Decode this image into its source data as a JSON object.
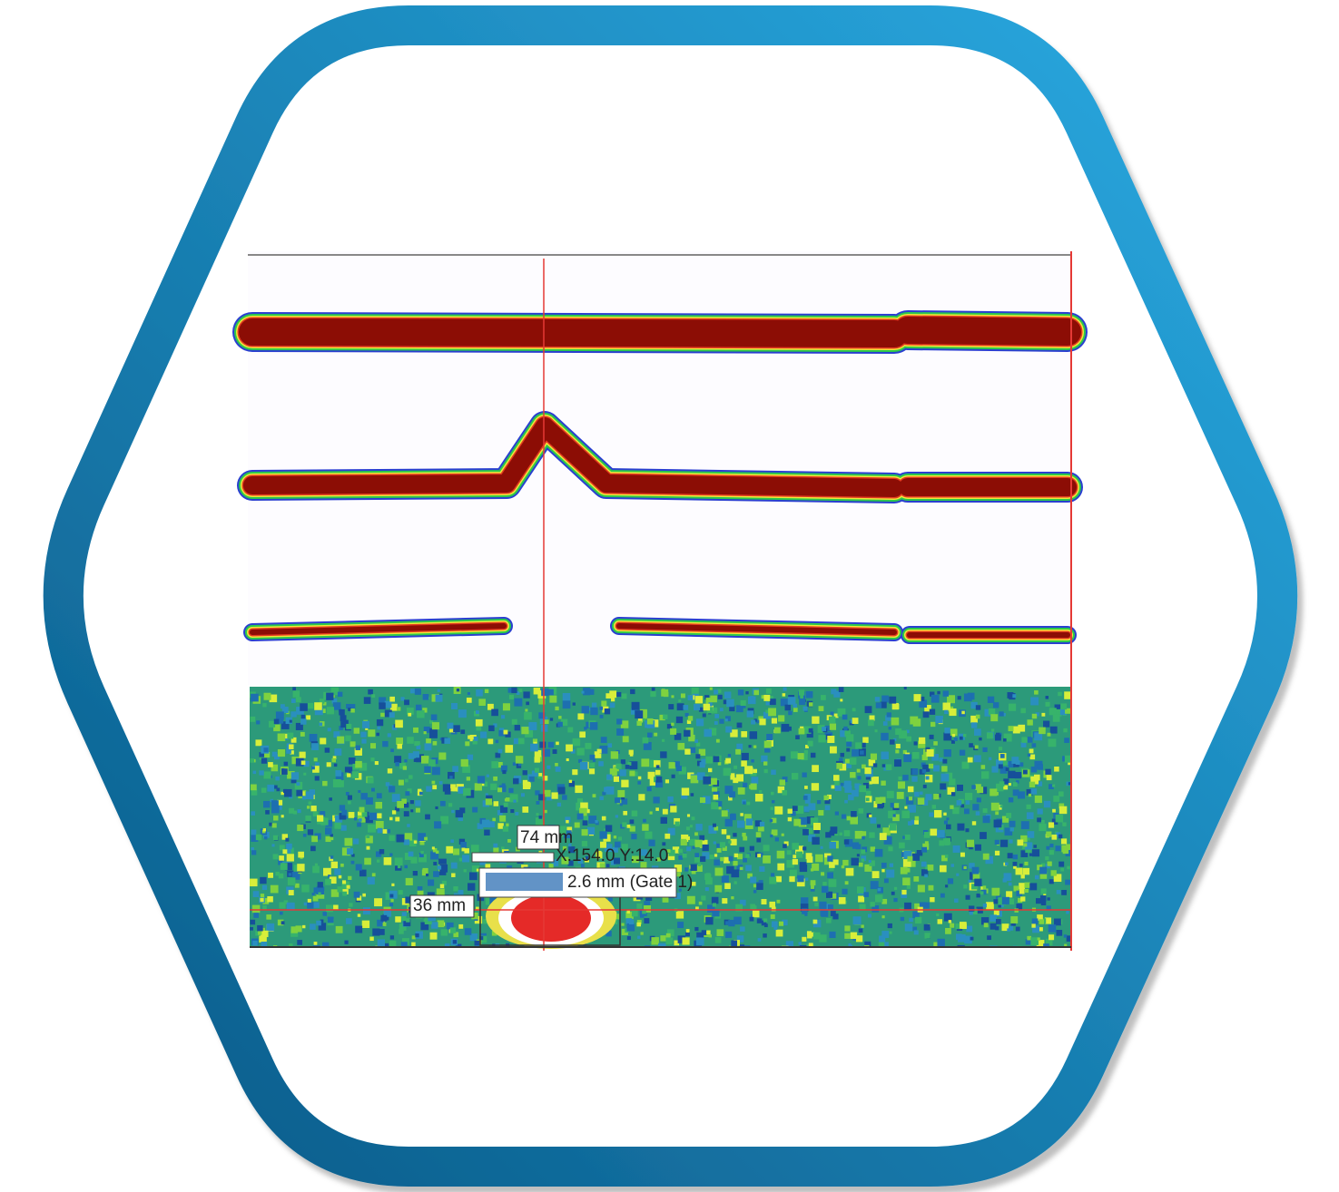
{
  "annotations": [
    "74 mm",
    "X:154.0 Y:14.0",
    "2.6 mm (Gate 1)",
    "36 mm"
  ]
}
